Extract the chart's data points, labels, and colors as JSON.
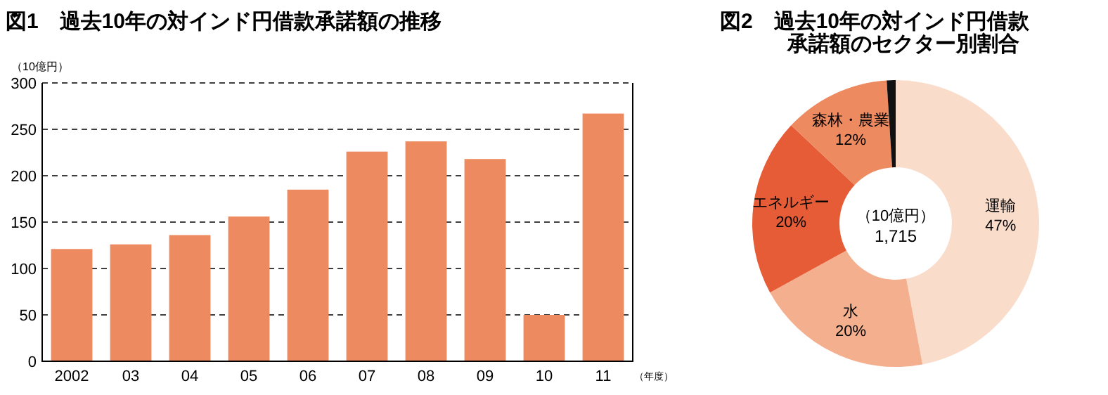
{
  "chart_data": [
    {
      "type": "bar",
      "title": "図1　過去10年の対インド円借款承諾額の推移",
      "ylabel": "（10億円）",
      "xlabel": "（年度）",
      "categories": [
        "2002",
        "03",
        "04",
        "05",
        "06",
        "07",
        "08",
        "09",
        "10",
        "11"
      ],
      "series": [
        {
          "color": "#ee8a60",
          "values": [
            121,
            126,
            136,
            156,
            185,
            226,
            237,
            218,
            50,
            267
          ]
        }
      ],
      "ylim": [
        0,
        300
      ],
      "yticks": [
        0,
        50,
        100,
        150,
        200,
        250,
        300
      ],
      "grid": "y"
    },
    {
      "type": "donut",
      "title": "図2　過去10年の対インド円借款承諾額のセクター別割合",
      "categories": [
        "運輸",
        "水",
        "エネルギー",
        "森林・農業",
        null
      ],
      "values": [
        47,
        20,
        20,
        12,
        1
      ],
      "colors": [
        "#fadccb",
        "#f4b08e",
        "#e65c37",
        "#ee8a60",
        "#111111"
      ],
      "value_labels": [
        "47%",
        "20%",
        "20%",
        "12%",
        null
      ],
      "annotations": [
        "（10億円）",
        "1,715"
      ]
    }
  ]
}
